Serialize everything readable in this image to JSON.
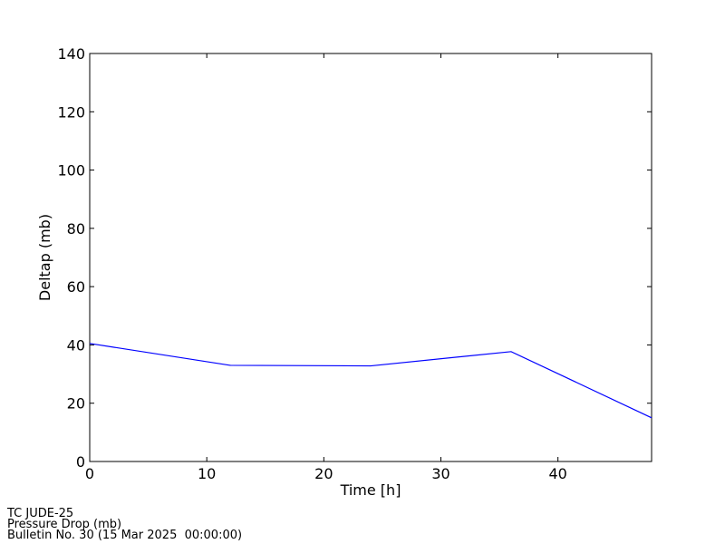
{
  "chart_data": {
    "type": "line",
    "x_label": "Time [h]",
    "y_label": "Deltap (mb)",
    "x": [
      0,
      12,
      24,
      36,
      48
    ],
    "values": [
      40.5,
      33,
      32.8,
      37.7,
      15
    ],
    "color": "#0000ff",
    "xlim": [
      0,
      48
    ],
    "xticks": [
      0,
      10,
      20,
      30,
      40
    ],
    "ylim": [
      0,
      140
    ],
    "yticks": [
      0,
      20,
      40,
      60,
      80,
      100,
      120,
      140
    ],
    "grid": false
  },
  "footer": [
    "TC JUDE-25",
    "Pressure Drop (mb)",
    "Bulletin No. 30 (15 Mar 2025  00:00:00)"
  ]
}
